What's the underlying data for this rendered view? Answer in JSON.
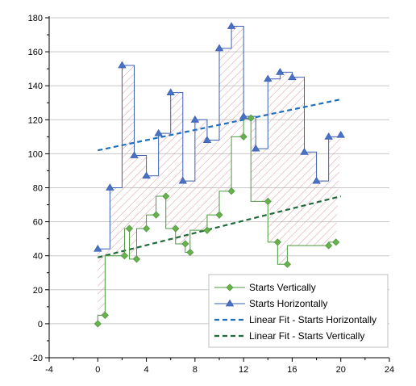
{
  "chart_data": {
    "type": "line",
    "title": "",
    "xlabel": "",
    "ylabel": "",
    "xlim": [
      -4,
      24
    ],
    "ylim": [
      -20,
      180
    ],
    "xticks": [
      -4,
      0,
      4,
      8,
      12,
      16,
      20,
      24
    ],
    "yticks": [
      -20,
      0,
      20,
      40,
      60,
      80,
      100,
      120,
      140,
      160,
      180
    ],
    "grid": "horizontal",
    "legend_position": "bottom-right",
    "series": [
      {
        "name": "Starts Vertically",
        "style": "step-vertical",
        "marker": "diamond",
        "color": "#4a9a3c",
        "x": [
          0,
          0.6,
          2.2,
          2.6,
          3.2,
          4,
          4.8,
          5.6,
          6.4,
          7.2,
          7.6,
          9,
          10,
          11,
          12,
          12.6,
          14,
          14.8,
          15.6,
          19,
          19.6
        ],
        "y": [
          0,
          5,
          40,
          56,
          38,
          56,
          64,
          75,
          56,
          47,
          42,
          55,
          64,
          78,
          110,
          121,
          72,
          48,
          35,
          46,
          48
        ]
      },
      {
        "name": "Starts Horizontally",
        "style": "step-horizontal",
        "marker": "triangle",
        "color": "#3a5fb4",
        "x": [
          0,
          1,
          2,
          3,
          4,
          5,
          6,
          7,
          8,
          9,
          10,
          11,
          12,
          13,
          14,
          15,
          16,
          17,
          18,
          19,
          20
        ],
        "y": [
          44,
          80,
          152,
          99,
          87,
          112,
          136,
          84,
          120,
          108,
          162,
          175,
          122,
          103,
          144,
          148,
          145,
          101,
          84,
          110,
          111
        ]
      },
      {
        "name": "Linear Fit - Starts Horizontally",
        "style": "dashed",
        "color": "#1f6fbf",
        "x": [
          0,
          20
        ],
        "y": [
          102,
          132
        ]
      },
      {
        "name": "Linear Fit - Starts Vertically",
        "style": "dashed",
        "color": "#1e6a3a",
        "x": [
          0,
          20
        ],
        "y": [
          39,
          75
        ]
      }
    ],
    "fill_between": {
      "series": [
        "Starts Vertically",
        "Starts Horizontally"
      ],
      "pattern": "diagonal-hatch",
      "color": "#d99aa0"
    }
  }
}
